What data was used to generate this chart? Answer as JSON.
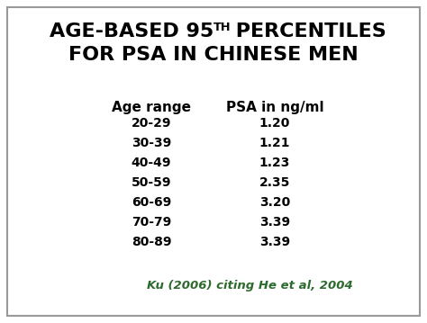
{
  "title_part1": "AGE-BASED 95",
  "title_superscript": "TH",
  "title_part2": " PERCENTILES",
  "title_line2": "FOR PSA IN CHINESE MEN",
  "col1_header": "Age range",
  "col2_header": "PSA in ng/ml",
  "age_ranges": [
    "20-29",
    "30-39",
    "40-49",
    "50-59",
    "60-69",
    "70-79",
    "80-89"
  ],
  "psa_values": [
    "1.20",
    "1.21",
    "1.23",
    "2.35",
    "3.20",
    "3.39",
    "3.39"
  ],
  "citation": "Ku (2006) citing He et al, 2004",
  "background_color": "#ffffff",
  "border_color": "#999999",
  "title_color": "#000000",
  "data_color": "#000000",
  "citation_color": "#2d6a2d",
  "title_fontsize": 16,
  "header_fontsize": 11,
  "data_fontsize": 10,
  "citation_fontsize": 9.5
}
